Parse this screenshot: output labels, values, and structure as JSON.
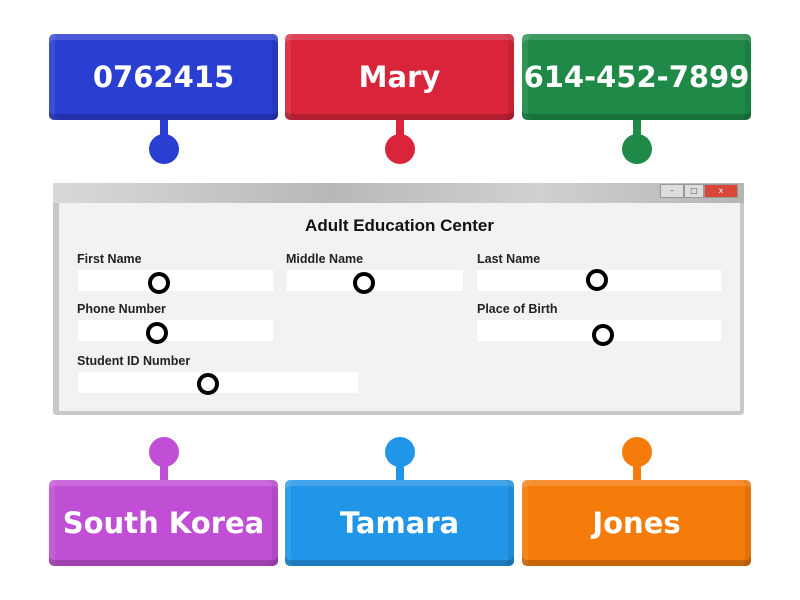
{
  "labels": [
    {
      "text": "0762415",
      "color": "#2b3ed2",
      "position": "top-left"
    },
    {
      "text": "Mary",
      "color": "#d9243a",
      "position": "top-center"
    },
    {
      "text": "614-452-7899",
      "color": "#1f8a48",
      "position": "top-right"
    },
    {
      "text": "South Korea",
      "color": "#c14fd5",
      "position": "bottom-left"
    },
    {
      "text": "Tamara",
      "color": "#2196e8",
      "position": "bottom-center"
    },
    {
      "text": "Jones",
      "color": "#f57c0b",
      "position": "bottom-right"
    }
  ],
  "window": {
    "title": "Adult Education Center",
    "controls": {
      "minimize": "–",
      "maximize": "□",
      "close": "x"
    },
    "fields": {
      "first_name": "First Name",
      "middle_name": "Middle Name",
      "last_name": "Last Name",
      "phone_number": "Phone Number",
      "place_of_birth": "Place of Birth",
      "student_id": "Student ID Number"
    }
  }
}
